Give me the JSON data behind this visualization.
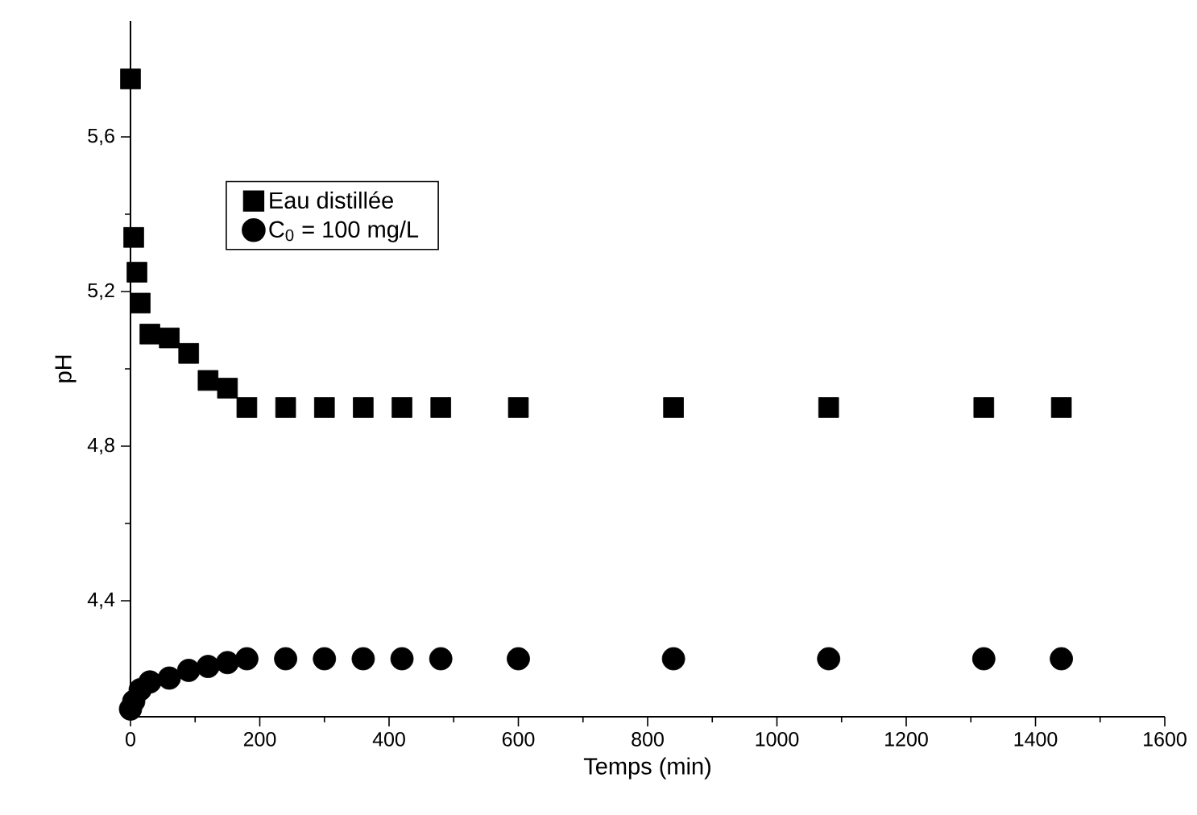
{
  "chart_data": {
    "type": "scatter",
    "xlabel": "Temps   (min)",
    "ylabel": "pH",
    "xlim": [
      0,
      1600
    ],
    "xticks": [
      0,
      200,
      400,
      600,
      800,
      1000,
      1200,
      1400,
      1600
    ],
    "ylim": [
      4.1,
      5.9
    ],
    "yticks": [
      {
        "value": 4.4,
        "label": "4,4"
      },
      {
        "value": 4.8,
        "label": "4,8"
      },
      {
        "value": 5.2,
        "label": "5,2"
      },
      {
        "value": 5.6,
        "label": "5,6"
      }
    ],
    "x": [
      0,
      5,
      10,
      15,
      30,
      60,
      90,
      120,
      150,
      180,
      240,
      300,
      360,
      420,
      480,
      600,
      840,
      1080,
      1320,
      1440
    ],
    "series": [
      {
        "name": "Eau distillée",
        "color": "#000000",
        "marker": "square",
        "values": [
          5.75,
          5.34,
          5.25,
          5.17,
          5.09,
          5.08,
          5.04,
          4.97,
          4.95,
          4.9,
          4.9,
          4.9,
          4.9,
          4.9,
          4.9,
          4.9,
          4.9,
          4.9,
          4.9,
          4.9
        ]
      },
      {
        "name": "C$_{0}$ = 100 mg/L",
        "color": "#000000",
        "marker": "circle",
        "values": [
          4.12,
          4.14,
          null,
          4.17,
          4.19,
          4.2,
          4.22,
          4.23,
          4.24,
          4.25,
          4.25,
          4.25,
          4.25,
          4.25,
          4.25,
          4.25,
          4.25,
          4.25,
          4.25,
          4.25
        ]
      }
    ],
    "legend": "top left",
    "grid": false
  }
}
